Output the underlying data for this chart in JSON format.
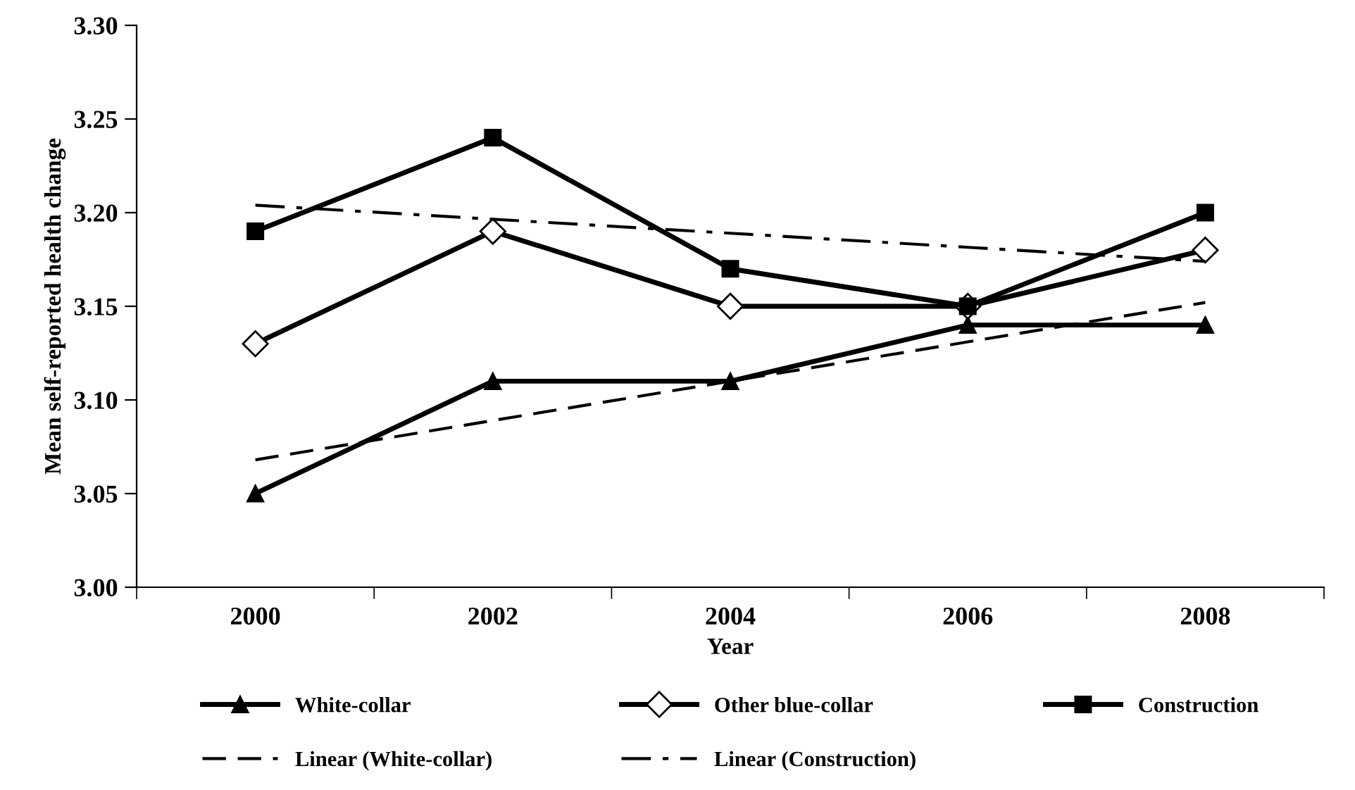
{
  "chart_data": {
    "type": "line",
    "xlabel": "Year",
    "ylabel": "Mean self-reported health change",
    "categories": [
      "2000",
      "2002",
      "2004",
      "2006",
      "2008"
    ],
    "ylim": [
      3.0,
      3.3
    ],
    "yticks": [
      {
        "value": 3.0,
        "label": "3.00"
      },
      {
        "value": 3.05,
        "label": "3.05"
      },
      {
        "value": 3.1,
        "label": "3.10"
      },
      {
        "value": 3.15,
        "label": "3.15"
      },
      {
        "value": 3.2,
        "label": "3.20"
      },
      {
        "value": 3.25,
        "label": "3.25"
      },
      {
        "value": 3.3,
        "label": "3.30"
      }
    ],
    "grid": false,
    "legend": "bottom",
    "series": [
      {
        "name": "White-collar",
        "color": "#000000",
        "marker": "triangle",
        "line_style": "solid",
        "values": [
          3.05,
          3.11,
          3.11,
          3.14,
          3.14
        ]
      },
      {
        "name": "Other blue-collar",
        "color": "#000000",
        "marker": "diamond",
        "line_style": "solid",
        "values": [
          3.13,
          3.19,
          3.15,
          3.15,
          3.18
        ]
      },
      {
        "name": "Construction",
        "color": "#000000",
        "marker": "square",
        "line_style": "solid",
        "values": [
          3.19,
          3.24,
          3.17,
          3.15,
          3.2
        ]
      },
      {
        "name": "Linear (White-collar)",
        "color": "#000000",
        "marker": "none",
        "line_style": "dashed",
        "values": [
          3.068,
          3.089,
          3.11,
          3.131,
          3.152
        ]
      },
      {
        "name": "Linear (Construction)",
        "color": "#000000",
        "marker": "none",
        "line_style": "dashdot",
        "values": [
          3.204,
          3.1965,
          3.189,
          3.1815,
          3.174
        ]
      }
    ]
  }
}
